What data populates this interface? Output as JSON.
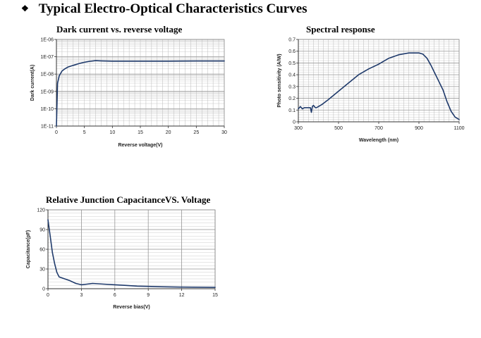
{
  "heading": {
    "bullet": "❖",
    "text": "Typical Electro-Optical Characteristics Curves"
  },
  "chart_data": [
    {
      "id": "dark",
      "type": "line",
      "title": "Dark current vs. reverse voltage",
      "xlabel": "Reverse voltage(V)",
      "ylabel": "Dark current(A)",
      "yscale": "log",
      "xlim": [
        0,
        30
      ],
      "ylim": [
        1e-11,
        1e-06
      ],
      "xticks": [
        0,
        5,
        10,
        15,
        20,
        25,
        30
      ],
      "xtick_labels": [
        "0",
        "5",
        "10",
        "15",
        "20",
        "25",
        "30"
      ],
      "yticks": [
        1e-11,
        1e-10,
        1e-09,
        1e-08,
        1e-07,
        1e-06
      ],
      "ytick_labels": [
        "1E-11",
        "1E-10",
        "1E-09",
        "1E-08",
        "1E-07",
        "1E-06"
      ],
      "line_color": "#1f3a6b",
      "series": [
        {
          "name": "Dark current",
          "x": [
            0,
            0.2,
            0.5,
            1,
            1.5,
            2,
            3,
            4,
            5,
            6,
            7,
            8,
            10,
            15,
            20,
            25,
            30
          ],
          "y": [
            1e-11,
            3e-09,
            8e-09,
            1.5e-08,
            2e-08,
            2.5e-08,
            3.2e-08,
            4e-08,
            4.8e-08,
            5.5e-08,
            6e-08,
            5.8e-08,
            5.6e-08,
            5.6e-08,
            5.6e-08,
            5.7e-08,
            5.7e-08
          ]
        }
      ]
    },
    {
      "id": "spectral",
      "type": "line",
      "title": "Spectral response",
      "xlabel": "Wavelength (nm)",
      "ylabel": "Photo sensitivity (A/W)",
      "xlim": [
        300,
        1100
      ],
      "ylim": [
        0,
        0.7
      ],
      "xticks": [
        300,
        500,
        700,
        900,
        1100
      ],
      "xtick_labels": [
        "300",
        "500",
        "700",
        "900",
        "1100"
      ],
      "yticks": [
        0,
        0.1,
        0.2,
        0.3,
        0.4,
        0.5,
        0.6,
        0.7
      ],
      "ytick_labels": [
        "0",
        "0.1",
        "0.2",
        "0.3",
        "0.4",
        "0.5",
        "0.6",
        "0.7"
      ],
      "line_color": "#1f3a6b",
      "series": [
        {
          "name": "Photo sensitivity",
          "x": [
            300,
            310,
            320,
            330,
            340,
            350,
            360,
            365,
            370,
            375,
            380,
            385,
            390,
            400,
            420,
            450,
            500,
            550,
            600,
            650,
            700,
            750,
            800,
            850,
            900,
            920,
            940,
            960,
            980,
            1000,
            1020,
            1040,
            1060,
            1080,
            1100
          ],
          "y": [
            0.11,
            0.13,
            0.11,
            0.12,
            0.12,
            0.12,
            0.12,
            0.08,
            0.13,
            0.14,
            0.13,
            0.12,
            0.12,
            0.13,
            0.15,
            0.19,
            0.26,
            0.33,
            0.4,
            0.45,
            0.49,
            0.54,
            0.57,
            0.585,
            0.585,
            0.575,
            0.54,
            0.48,
            0.41,
            0.34,
            0.27,
            0.17,
            0.09,
            0.04,
            0.02
          ]
        }
      ]
    },
    {
      "id": "cap",
      "type": "line",
      "title": "Relative Junction CapacitanceVS. Voltage",
      "xlabel": "Reverse bias(V)",
      "ylabel": "Capacitance(pF)",
      "xlim": [
        0,
        15
      ],
      "ylim": [
        0,
        120
      ],
      "xticks": [
        0,
        3,
        6,
        9,
        12,
        15
      ],
      "xtick_labels": [
        "0",
        "3",
        "6",
        "9",
        "12",
        "15"
      ],
      "yticks": [
        0,
        30,
        60,
        90,
        120
      ],
      "ytick_labels": [
        "0",
        "30",
        "60",
        "90",
        "120"
      ],
      "line_color": "#1f3a6b",
      "series": [
        {
          "name": "Capacitance",
          "x": [
            0,
            0.2,
            0.4,
            0.6,
            0.8,
            1,
            1.5,
            2,
            2.5,
            3,
            3.5,
            4,
            5,
            6,
            7,
            8,
            9,
            10,
            12,
            15
          ],
          "y": [
            105,
            80,
            55,
            38,
            25,
            18,
            15,
            12,
            8,
            6,
            7,
            8,
            7,
            6,
            5,
            4,
            3.5,
            3,
            2.5,
            2
          ]
        }
      ]
    }
  ]
}
